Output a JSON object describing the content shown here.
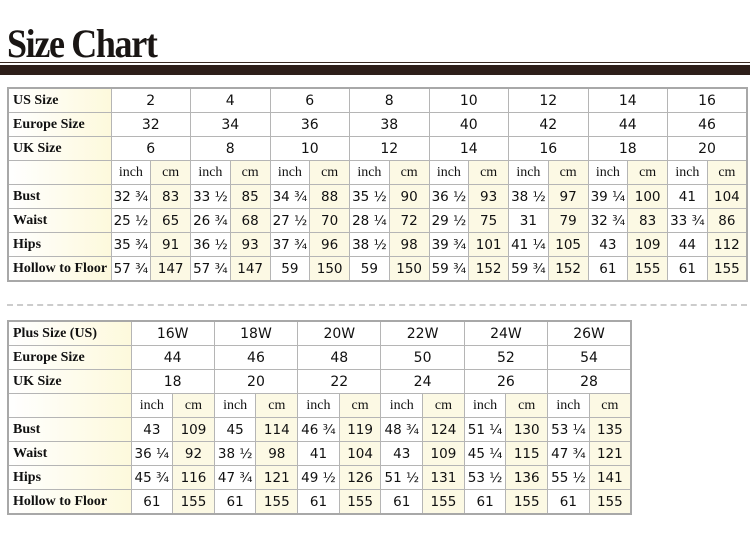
{
  "title": "Size Chart",
  "standard": {
    "size_rows": [
      {
        "label": "US Size",
        "values": [
          "2",
          "4",
          "6",
          "8",
          "10",
          "12",
          "14",
          "16"
        ]
      },
      {
        "label": "Europe Size",
        "values": [
          "32",
          "34",
          "36",
          "38",
          "40",
          "42",
          "44",
          "46"
        ]
      },
      {
        "label": "UK Size",
        "values": [
          "6",
          "8",
          "10",
          "12",
          "14",
          "16",
          "18",
          "20"
        ]
      }
    ],
    "units": [
      "inch",
      "cm"
    ],
    "measure_rows": [
      {
        "label": "Bust",
        "values": [
          "32 ¾",
          "83",
          "33 ½",
          "85",
          "34 ¾",
          "88",
          "35 ½",
          "90",
          "36 ½",
          "93",
          "38 ½",
          "97",
          "39 ¼",
          "100",
          "41",
          "104"
        ]
      },
      {
        "label": "Waist",
        "values": [
          "25 ½",
          "65",
          "26 ¾",
          "68",
          "27 ½",
          "70",
          "28 ¼",
          "72",
          "29 ½",
          "75",
          "31",
          "79",
          "32 ¾",
          "83",
          "33 ¾",
          "86"
        ]
      },
      {
        "label": "Hips",
        "values": [
          "35 ¾",
          "91",
          "36 ½",
          "93",
          "37 ¾",
          "96",
          "38 ½",
          "98",
          "39 ¾",
          "101",
          "41 ¼",
          "105",
          "43",
          "109",
          "44",
          "112"
        ]
      },
      {
        "label": "Hollow to Floor",
        "values": [
          "57 ¾",
          "147",
          "57 ¾",
          "147",
          "59",
          "150",
          "59",
          "150",
          "59 ¾",
          "152",
          "59 ¾",
          "152",
          "61",
          "155",
          "61",
          "155"
        ]
      }
    ]
  },
  "plus": {
    "size_rows": [
      {
        "label": "Plus Size (US)",
        "values": [
          "16W",
          "18W",
          "20W",
          "22W",
          "24W",
          "26W"
        ]
      },
      {
        "label": "Europe Size",
        "values": [
          "44",
          "46",
          "48",
          "50",
          "52",
          "54"
        ]
      },
      {
        "label": "UK Size",
        "values": [
          "18",
          "20",
          "22",
          "24",
          "26",
          "28"
        ]
      }
    ],
    "units": [
      "inch",
      "cm"
    ],
    "measure_rows": [
      {
        "label": "Bust",
        "values": [
          "43",
          "109",
          "45",
          "114",
          "46 ¾",
          "119",
          "48 ¾",
          "124",
          "51 ¼",
          "130",
          "53 ¼",
          "135"
        ]
      },
      {
        "label": "Waist",
        "values": [
          "36 ¼",
          "92",
          "38 ½",
          "98",
          "41",
          "104",
          "43",
          "109",
          "45 ¼",
          "115",
          "47 ¾",
          "121"
        ]
      },
      {
        "label": "Hips",
        "values": [
          "45 ¾",
          "116",
          "47 ¾",
          "121",
          "49 ½",
          "126",
          "51 ½",
          "131",
          "53 ½",
          "136",
          "55 ½",
          "141"
        ]
      },
      {
        "label": "Hollow to Floor",
        "values": [
          "61",
          "155",
          "61",
          "155",
          "61",
          "155",
          "61",
          "155",
          "61",
          "155",
          "61",
          "155"
        ]
      }
    ]
  }
}
